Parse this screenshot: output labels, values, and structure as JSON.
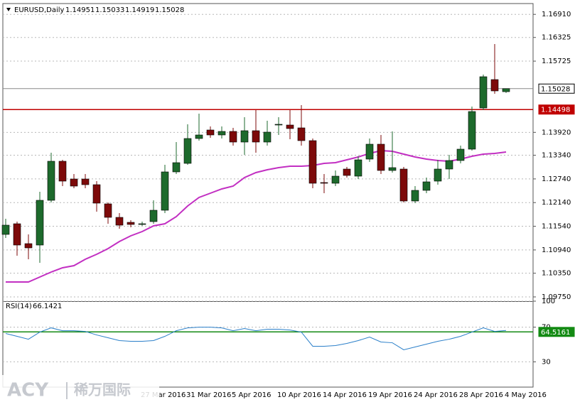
{
  "chart_data": [
    {
      "type": "candlestick",
      "title": "EURUSD,Daily",
      "categories": [
        null,
        null,
        null,
        null,
        null,
        null,
        null,
        null,
        null,
        null,
        null,
        null,
        "27 Mar 2016",
        null,
        null,
        null,
        "31 Mar 2016",
        null,
        null,
        null,
        "5 Apr 2016",
        null,
        null,
        null,
        "10 Apr 2016",
        null,
        null,
        null,
        "14 Apr 2016",
        null,
        null,
        null,
        "19 Apr 2016",
        null,
        null,
        null,
        "24 Apr 2016",
        null,
        null,
        null,
        "28 Apr 2016",
        null,
        null,
        null,
        "4 May 2016"
      ],
      "open": [
        1.11334,
        1.11604,
        1.111,
        1.11064,
        1.12198,
        1.13188,
        1.12738,
        1.12738,
        1.12594,
        1.12108,
        1.11766,
        1.1164,
        1.11586,
        1.11658,
        1.11946,
        1.12918,
        1.13134,
        1.13764,
        1.1398,
        1.13854,
        1.13944,
        1.13674,
        1.13962,
        1.13674,
        1.14106,
        1.14106,
        1.14034,
        1.1371,
        1.12648,
        1.1263,
        1.1299,
        1.1281,
        1.13242,
        1.1362,
        1.12954,
        1.1299,
        1.1218,
        1.1245,
        1.12684,
        1.1299,
        1.13206,
        1.13494,
        1.14538,
        1.15258,
        1.14951
      ],
      "high": [
        1.1173,
        1.11658,
        1.11334,
        1.12414,
        1.13404,
        1.13224,
        1.12864,
        1.12864,
        1.12684,
        1.12144,
        1.11874,
        1.11694,
        1.11658,
        1.12198,
        1.13098,
        1.13674,
        1.14124,
        1.14394,
        1.1407,
        1.1407,
        1.14034,
        1.14304,
        1.14484,
        1.14214,
        1.14304,
        1.14484,
        1.1461,
        1.13764,
        1.12864,
        1.12954,
        1.13044,
        1.13314,
        1.13764,
        1.13854,
        1.13944,
        1.13044,
        1.12558,
        1.12774,
        1.13224,
        1.1335,
        1.13584,
        1.14574,
        1.15384,
        1.16158,
        1.15033
      ],
      "low": [
        1.11244,
        1.10794,
        1.10704,
        1.10614,
        1.12144,
        1.12558,
        1.12504,
        1.12504,
        1.1191,
        1.11604,
        1.11478,
        1.11514,
        1.1155,
        1.11604,
        1.11874,
        1.12864,
        1.13098,
        1.1371,
        1.13782,
        1.13764,
        1.13584,
        1.1335,
        1.13404,
        1.13584,
        1.13854,
        1.13746,
        1.13584,
        1.12504,
        1.12378,
        1.12558,
        1.12774,
        1.12738,
        1.1317,
        1.12864,
        1.129,
        1.12144,
        1.12126,
        1.12378,
        1.12594,
        1.12738,
        1.13134,
        1.13458,
        1.14484,
        1.14898,
        1.14919
      ],
      "close": [
        1.11568,
        1.11064,
        1.10992,
        1.12198,
        1.13188,
        1.12684,
        1.12558,
        1.12594,
        1.12126,
        1.11766,
        1.11568,
        1.11586,
        1.11604,
        1.11946,
        1.12918,
        1.13152,
        1.13764,
        1.13854,
        1.13854,
        1.13944,
        1.13674,
        1.13962,
        1.13674,
        1.13926,
        1.14124,
        1.14016,
        1.1371,
        1.1263,
        1.1263,
        1.1281,
        1.12828,
        1.13224,
        1.1362,
        1.12954,
        1.13026,
        1.1218,
        1.1245,
        1.12666,
        1.1299,
        1.13206,
        1.13494,
        1.14448,
        1.1533,
        1.1497,
        1.15028
      ],
      "up_color": "#1d6a2c",
      "down_color": "#7d0a0a",
      "overlay": {
        "color": "#c22fc2",
        "values": [
          1.10128,
          1.10128,
          1.10128,
          1.10254,
          1.1038,
          1.10488,
          1.10542,
          1.10704,
          1.1083,
          1.10974,
          1.11154,
          1.11298,
          1.11406,
          1.1155,
          1.11604,
          1.11784,
          1.12054,
          1.1227,
          1.12378,
          1.12486,
          1.12558,
          1.12774,
          1.129,
          1.12972,
          1.13026,
          1.13062,
          1.13062,
          1.1308,
          1.13134,
          1.13152,
          1.13224,
          1.13296,
          1.13386,
          1.13458,
          1.1344,
          1.13368,
          1.13296,
          1.13242,
          1.13206,
          1.13188,
          1.13242,
          1.13314,
          1.13368,
          1.13386,
          1.13422
        ]
      },
      "hline": {
        "value": 1.14498,
        "color": "#c00000"
      },
      "ylim": [
        1.09642,
        1.1713
      ],
      "yticks": [
        {
          "value": 1.1691,
          "label": "1.16910"
        },
        1.16325,
        1.15725,
        {
          "value": 1.1392,
          "label": "1.13920"
        },
        {
          "value": 1.1334,
          "label": "1.13340"
        },
        {
          "value": 1.1274,
          "label": "1.12740"
        },
        {
          "value": 1.1214,
          "label": "1.12140"
        },
        {
          "value": 1.1154,
          "label": "1.11540"
        },
        {
          "value": 1.1094,
          "label": "1.10940"
        },
        {
          "value": 1.1035,
          "label": "1.10350"
        },
        {
          "value": 1.0975,
          "label": "1.09750"
        }
      ],
      "grid": true
    },
    {
      "type": "line",
      "title": "RSI(14)",
      "color": "#2a7fc9",
      "values": [
        62.7,
        59.4,
        56.1,
        64.3,
        69.2,
        65.9,
        65.9,
        65.1,
        61.0,
        57.8,
        54.5,
        53.7,
        53.7,
        54.5,
        59.4,
        65.9,
        69.2,
        70,
        70,
        69.2,
        65.9,
        68.4,
        65.9,
        67.6,
        67.6,
        66.7,
        64.3,
        48.0,
        48.0,
        48.8,
        51.2,
        54.5,
        58.6,
        52.9,
        52.0,
        43.9,
        47.1,
        50.4,
        53.7,
        56.1,
        59.4,
        64.3,
        69.2,
        65.1,
        66.1421
      ],
      "level": {
        "value": 64.5161,
        "color": "#138a13"
      },
      "ylim": [
        0,
        100
      ],
      "yticks": [
        100,
        70,
        30
      ],
      "grid": true
    }
  ],
  "watermark": {
    "brand": "ACY",
    "name": "稀万国际"
  }
}
